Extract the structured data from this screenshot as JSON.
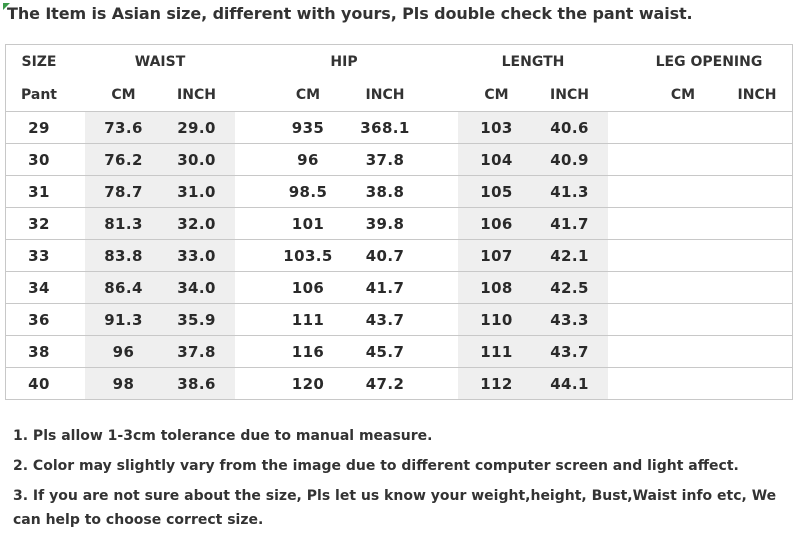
{
  "headline": "The Item is Asian size, different with yours, Pls double check the pant waist.",
  "table": {
    "group_headers": {
      "size": "SIZE",
      "waist": "WAIST",
      "hip": "HIP",
      "length": "LENGTH",
      "leg_opening": "LEG OPENING"
    },
    "sub_headers": {
      "size": "Pant",
      "waist_cm": "CM",
      "waist_inch": "INCH",
      "hip_cm": "CM",
      "hip_inch": "INCH",
      "length_cm": "CM",
      "length_inch": "INCH",
      "leg_cm": "CM",
      "leg_inch": "INCH"
    },
    "rows": [
      {
        "size": "29",
        "waist_cm": "73.6",
        "waist_inch": "29.0",
        "hip_cm": "935",
        "hip_inch": "368.1",
        "length_cm": "103",
        "length_inch": "40.6",
        "leg_cm": "",
        "leg_inch": ""
      },
      {
        "size": "30",
        "waist_cm": "76.2",
        "waist_inch": "30.0",
        "hip_cm": "96",
        "hip_inch": "37.8",
        "length_cm": "104",
        "length_inch": "40.9",
        "leg_cm": "",
        "leg_inch": ""
      },
      {
        "size": "31",
        "waist_cm": "78.7",
        "waist_inch": "31.0",
        "hip_cm": "98.5",
        "hip_inch": "38.8",
        "length_cm": "105",
        "length_inch": "41.3",
        "leg_cm": "",
        "leg_inch": ""
      },
      {
        "size": "32",
        "waist_cm": "81.3",
        "waist_inch": "32.0",
        "hip_cm": "101",
        "hip_inch": "39.8",
        "length_cm": "106",
        "length_inch": "41.7",
        "leg_cm": "",
        "leg_inch": ""
      },
      {
        "size": "33",
        "waist_cm": "83.8",
        "waist_inch": "33.0",
        "hip_cm": "103.5",
        "hip_inch": "40.7",
        "length_cm": "107",
        "length_inch": "42.1",
        "leg_cm": "",
        "leg_inch": ""
      },
      {
        "size": "34",
        "waist_cm": "86.4",
        "waist_inch": "34.0",
        "hip_cm": "106",
        "hip_inch": "41.7",
        "length_cm": "108",
        "length_inch": "42.5",
        "leg_cm": "",
        "leg_inch": ""
      },
      {
        "size": "36",
        "waist_cm": "91.3",
        "waist_inch": "35.9",
        "hip_cm": "111",
        "hip_inch": "43.7",
        "length_cm": "110",
        "length_inch": "43.3",
        "leg_cm": "",
        "leg_inch": ""
      },
      {
        "size": "38",
        "waist_cm": "96",
        "waist_inch": "37.8",
        "hip_cm": "116",
        "hip_inch": "45.7",
        "length_cm": "111",
        "length_inch": "43.7",
        "leg_cm": "",
        "leg_inch": ""
      },
      {
        "size": "40",
        "waist_cm": "98",
        "waist_inch": "38.6",
        "hip_cm": "120",
        "hip_inch": "47.2",
        "length_cm": "112",
        "length_inch": "44.1",
        "leg_cm": "",
        "leg_inch": ""
      }
    ]
  },
  "notes": [
    "1. Pls allow 1-3cm tolerance due to manual measure.",
    "2. Color may slightly vary from the image due to different computer screen and light affect.",
    "3. If you are not sure about the size, Pls let us know your weight,height, Bust,Waist info etc, We can help to choose correct size."
  ],
  "colors": {
    "text": "#333333",
    "grid_line": "#c8c8c8",
    "shaded_column": "#efefef",
    "corner_mark": "#3a9a4a"
  }
}
